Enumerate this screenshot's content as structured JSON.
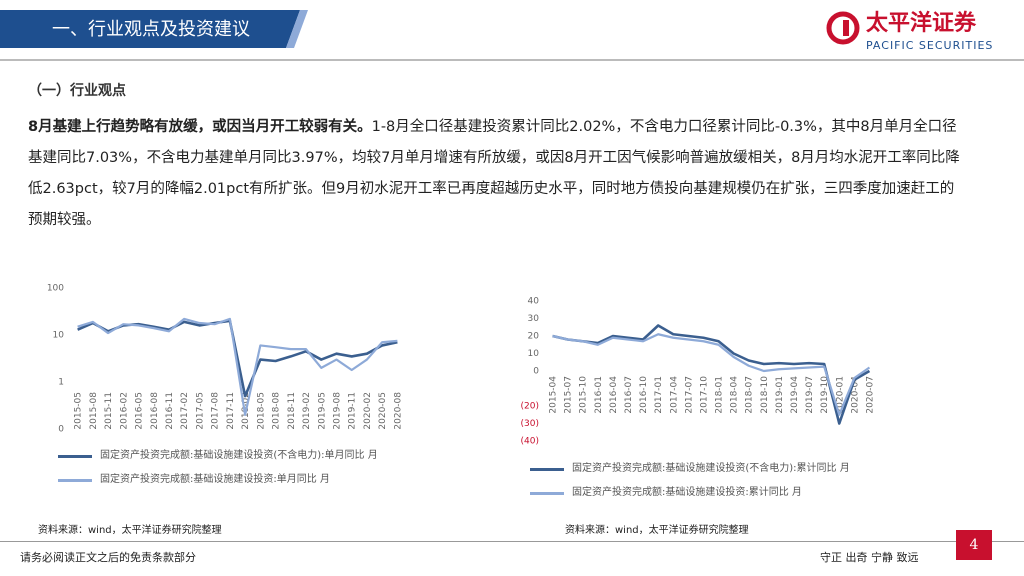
{
  "header": {
    "title": "一、行业观点及投资建议",
    "logo_cn": "太平洋证券",
    "logo_en": "PACIFIC SECURITIES"
  },
  "section": "（一）行业观点",
  "paragraph": {
    "lead": "8月基建上行趋势略有放缓，或因当月开工较弱有关。",
    "body": "1-8月全口径基建投资累计同比2.02%，不含电力口径累计同比-0.3%，其中8月单月全口径基建同比7.03%，不含电力基建单月同比3.97%，均较7月单月增速有所放缓，或因8月开工因气候影响普遍放缓相关，8月月均水泥开工率同比降低2.63pct，较7月的降幅2.01pct有所扩张。但9月初水泥开工率已再度超越历史水平，同时地方债投向基建规模仍在扩张，三四季度加速赶工的预期较强。"
  },
  "chart_data": [
    {
      "type": "line",
      "log_scale": true,
      "categories": [
        "2015-05",
        "2015-08",
        "2015-11",
        "2016-02",
        "2016-05",
        "2016-08",
        "2016-11",
        "2017-02",
        "2017-05",
        "2017-08",
        "2017-11",
        "2018-02",
        "2018-05",
        "2018-08",
        "2018-11",
        "2019-02",
        "2019-05",
        "2019-08",
        "2019-11",
        "2020-02",
        "2020-05",
        "2020-08"
      ],
      "ylim": [
        0.1,
        100
      ],
      "yticks": [
        100,
        10,
        1,
        {
          "value": 0.1,
          "label": "0"
        }
      ],
      "series": [
        {
          "name": "固定资产投资完成额:基础设施建设投资(不含电力):单月同比 月",
          "color": "#3b5f8f",
          "values": [
            13,
            18,
            12,
            16,
            17,
            15,
            13,
            19,
            16,
            18,
            20,
            0.5,
            3,
            2.8,
            3.5,
            4.5,
            3,
            4,
            3.5,
            4,
            6,
            7
          ]
        },
        {
          "name": "固定资产投资完成额:基础设施建设投资:单月同比 月",
          "color": "#8eaad8",
          "values": [
            15,
            19,
            11,
            17,
            16,
            14,
            12,
            22,
            18,
            17,
            22,
            0.2,
            6,
            5.5,
            5,
            5,
            2,
            3,
            1.8,
            3,
            7,
            7.5
          ]
        }
      ]
    },
    {
      "type": "line",
      "log_scale": false,
      "categories": [
        "2015-04",
        "2015-07",
        "2015-10",
        "2016-01",
        "2016-04",
        "2016-07",
        "2016-10",
        "2017-01",
        "2017-04",
        "2017-07",
        "2017-10",
        "2018-01",
        "2018-04",
        "2018-07",
        "2018-10",
        "2019-01",
        "2019-04",
        "2019-07",
        "2019-10",
        "2020-01",
        "2020-04",
        "2020-07"
      ],
      "ylim": [
        -40,
        40
      ],
      "yticks": [
        40,
        30,
        20,
        10,
        0,
        {
          "value": -20,
          "label": "(20)"
        },
        {
          "value": -30,
          "label": "(30)"
        },
        {
          "value": -40,
          "label": "(40)"
        }
      ],
      "series": [
        {
          "name": "固定资产投资完成额:基础设施建设投资(不含电力):累计同比 月",
          "color": "#3b5f8f",
          "values": [
            20,
            18,
            17,
            16,
            20,
            19,
            18,
            26,
            21,
            20,
            19,
            17,
            10,
            6,
            4,
            4.5,
            4,
            4.5,
            4,
            -30,
            -5,
            0
          ]
        },
        {
          "name": "固定资产投资完成额:基础设施建设投资:累计同比 月",
          "color": "#8eaad8",
          "values": [
            20,
            18,
            17,
            15,
            19,
            18,
            17,
            21,
            19,
            18,
            17,
            15,
            8,
            3,
            0,
            1,
            1.5,
            2,
            2.5,
            -25,
            -4,
            2
          ]
        }
      ]
    }
  ],
  "sources": [
    "资料来源：wind，太平洋证券研究院整理",
    "资料来源：wind，太平洋证券研究院整理"
  ],
  "footer": {
    "disclaimer": "请务必阅读正文之后的免责条款部分",
    "motto": "守正 出奇 宁静 致远",
    "page": 4
  }
}
